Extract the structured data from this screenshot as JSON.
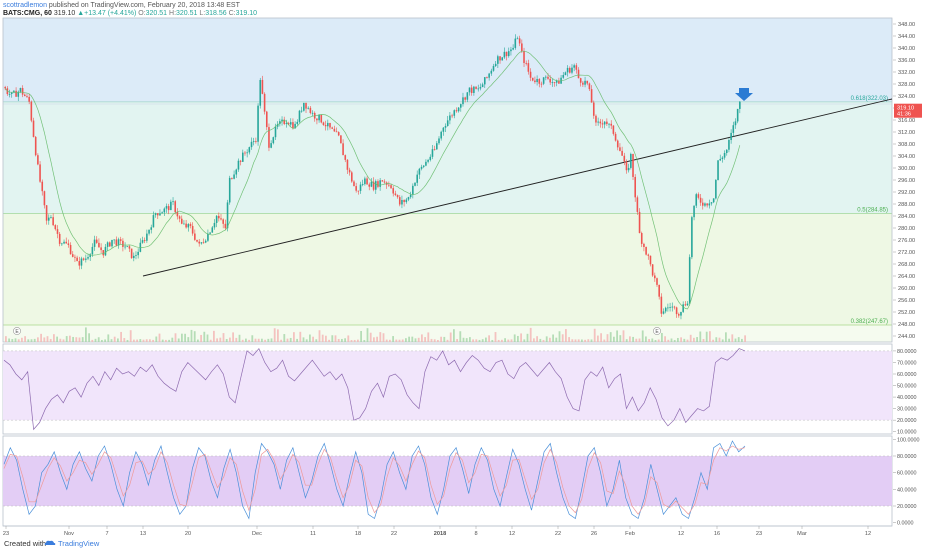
{
  "header": {
    "author": "scottradlemon",
    "published_text": "published on TradingView.com, February 20, 2018 13:48 EST",
    "symbol": "BATS:CMG, 60",
    "last": "319.10",
    "change": "+13.47 (+4.41%)",
    "open_label": "O:",
    "open": "320.51",
    "high_label": "H:",
    "high": "320.51",
    "low_label": "L:",
    "low": "318.56",
    "close_label": "C:",
    "close": "319.10"
  },
  "footer": {
    "created_label": "Created with",
    "brand": "TradingView"
  },
  "colors": {
    "up": "#26a69a",
    "down": "#ef5350",
    "band_top": "#dcebf8",
    "band_mid": "#e2f4f1",
    "band_low": "#eef8e4",
    "rsi_band": "#f1e5fb",
    "stoch_band": "#e3cdf5",
    "ma": "#66bb6a",
    "rsi_line": "#8e6bb0",
    "stoch_k": "#4a90d9",
    "stoch_d": "#ef9a9a",
    "arrow": "#2b7bd3",
    "price_tag": "#ef5350"
  },
  "chart_data": [
    {
      "type": "candlestick",
      "title": "",
      "yticks": [
        244,
        248,
        252,
        256,
        260,
        264,
        268,
        272,
        276,
        280,
        284,
        288,
        292,
        296,
        300,
        304,
        308,
        312,
        316,
        320,
        324,
        328,
        332,
        336,
        340,
        344,
        348
      ],
      "ylim": [
        242,
        350
      ],
      "xticks": [
        "23",
        "Nov",
        "7",
        "13",
        "20",
        "Dec",
        "11",
        "18",
        "22",
        "2018",
        "8",
        "12",
        "22",
        "26",
        "Feb",
        "12",
        "16",
        "23",
        "Mar",
        "12"
      ],
      "fib_levels": [
        {
          "label": "0.618(322.03)",
          "value": 322.03
        },
        {
          "label": "0.5(284.85)",
          "value": 284.85
        },
        {
          "label": "0.382(247.67)",
          "value": 247.67
        }
      ],
      "trendline": {
        "from": {
          "x": "13",
          "y": 264
        },
        "to": {
          "x": "Mar-12+",
          "y": 323
        }
      },
      "last_price": "319.10",
      "timer": "41:36",
      "event_markers": [
        "E",
        "E"
      ],
      "price_path": [
        [
          0,
          327
        ],
        [
          4,
          324
        ],
        [
          8,
          326
        ],
        [
          12,
          322
        ],
        [
          16,
          300
        ],
        [
          20,
          282
        ],
        [
          22,
          284
        ],
        [
          26,
          276
        ],
        [
          30,
          274
        ],
        [
          34,
          268
        ],
        [
          38,
          270
        ],
        [
          42,
          275
        ],
        [
          46,
          272
        ],
        [
          50,
          276
        ],
        [
          56,
          274
        ],
        [
          60,
          270
        ],
        [
          66,
          278
        ],
        [
          70,
          285
        ],
        [
          74,
          286
        ],
        [
          78,
          288
        ],
        [
          82,
          281
        ],
        [
          86,
          280
        ],
        [
          90,
          274
        ],
        [
          94,
          278
        ],
        [
          98,
          284
        ],
        [
          102,
          280
        ],
        [
          104,
          296
        ],
        [
          108,
          302
        ],
        [
          112,
          306
        ],
        [
          116,
          310
        ],
        [
          118,
          330
        ],
        [
          120,
          318
        ],
        [
          122,
          308
        ],
        [
          126,
          314
        ],
        [
          130,
          316
        ],
        [
          134,
          314
        ],
        [
          138,
          322
        ],
        [
          142,
          318
        ],
        [
          146,
          316
        ],
        [
          150,
          313
        ],
        [
          154,
          310
        ],
        [
          158,
          300
        ],
        [
          162,
          292
        ],
        [
          166,
          296
        ],
        [
          170,
          294
        ],
        [
          174,
          296
        ],
        [
          178,
          294
        ],
        [
          182,
          288
        ],
        [
          186,
          290
        ],
        [
          190,
          298
        ],
        [
          194,
          302
        ],
        [
          198,
          306
        ],
        [
          202,
          314
        ],
        [
          206,
          318
        ],
        [
          210,
          322
        ],
        [
          214,
          326
        ],
        [
          218,
          326
        ],
        [
          222,
          330
        ],
        [
          226,
          336
        ],
        [
          230,
          338
        ],
        [
          234,
          340
        ],
        [
          236,
          344
        ],
        [
          238,
          338
        ],
        [
          242,
          330
        ],
        [
          246,
          329
        ],
        [
          250,
          330
        ],
        [
          254,
          328
        ],
        [
          258,
          332
        ],
        [
          262,
          334
        ],
        [
          264,
          330
        ],
        [
          268,
          328
        ],
        [
          270,
          322
        ],
        [
          272,
          314
        ],
        [
          276,
          316
        ],
        [
          280,
          312
        ],
        [
          284,
          304
        ],
        [
          286,
          298
        ],
        [
          288,
          304
        ],
        [
          292,
          278
        ],
        [
          296,
          270
        ],
        [
          300,
          260
        ],
        [
          302,
          252
        ],
        [
          306,
          254
        ],
        [
          310,
          252
        ],
        [
          314,
          256
        ],
        [
          316,
          284
        ],
        [
          318,
          290
        ],
        [
          322,
          288
        ],
        [
          326,
          290
        ],
        [
          328,
          302
        ],
        [
          332,
          306
        ],
        [
          336,
          316
        ],
        [
          338,
          322
        ]
      ]
    },
    {
      "type": "line",
      "title": "",
      "yticks": [
        "80.0000",
        "70.0000",
        "60.0000",
        "50.0000",
        "40.0000",
        "30.0000",
        "20.0000",
        "10.0000"
      ],
      "ylim": [
        8,
        86
      ],
      "band": [
        20,
        80
      ],
      "values": [
        72,
        68,
        60,
        55,
        62,
        12,
        18,
        30,
        38,
        42,
        35,
        45,
        48,
        40,
        52,
        58,
        50,
        62,
        55,
        65,
        60,
        62,
        58,
        66,
        62,
        68,
        58,
        52,
        48,
        45,
        62,
        70,
        65,
        60,
        55,
        62,
        68,
        60,
        40,
        35,
        58,
        80,
        76,
        82,
        70,
        62,
        65,
        72,
        58,
        54,
        60,
        66,
        72,
        65,
        58,
        62,
        55,
        60,
        48,
        20,
        22,
        30,
        45,
        52,
        40,
        58,
        60,
        55,
        42,
        35,
        30,
        62,
        75,
        72,
        80,
        68,
        72,
        62,
        70,
        76,
        72,
        65,
        62,
        70,
        72,
        60,
        56,
        66,
        70,
        64,
        58,
        64,
        70,
        62,
        56,
        40,
        30,
        28,
        55,
        62,
        58,
        66,
        48,
        56,
        60,
        30,
        40,
        28,
        35,
        48,
        38,
        22,
        15,
        20,
        30,
        18,
        24,
        30,
        28,
        32,
        70,
        74,
        72,
        76,
        82,
        80
      ]
    },
    {
      "type": "line",
      "title": "",
      "yticks": [
        "100.0000",
        "80.0000",
        "60.0000",
        "40.0000",
        "20.0000",
        "0.0000"
      ],
      "ylim": [
        -4,
        104
      ],
      "band": [
        20,
        80
      ],
      "series": [
        {
          "values": [
            70,
            90,
            75,
            40,
            10,
            20,
            60,
            70,
            85,
            60,
            40,
            70,
            85,
            65,
            50,
            80,
            92,
            70,
            40,
            20,
            60,
            85,
            70,
            45,
            75,
            92,
            60,
            30,
            10,
            20,
            65,
            90,
            80,
            50,
            30,
            65,
            88,
            60,
            20,
            5,
            60,
            95,
            85,
            70,
            40,
            75,
            90,
            60,
            30,
            50,
            80,
            95,
            70,
            40,
            20,
            55,
            85,
            60,
            10,
            5,
            30,
            70,
            85,
            60,
            40,
            80,
            92,
            70,
            30,
            10,
            40,
            80,
            90,
            65,
            35,
            70,
            90,
            75,
            40,
            20,
            55,
            88,
            70,
            40,
            15,
            50,
            85,
            95,
            60,
            30,
            10,
            5,
            40,
            80,
            90,
            60,
            20,
            40,
            75,
            30,
            10,
            5,
            30,
            70,
            40,
            10,
            20,
            30,
            10,
            5,
            30,
            60,
            40,
            90,
            95,
            80,
            98,
            85,
            92
          ]
        },
        {
          "values": [
            65,
            82,
            80,
            55,
            25,
            25,
            45,
            65,
            78,
            68,
            50,
            60,
            75,
            72,
            58,
            70,
            85,
            78,
            55,
            32,
            45,
            72,
            74,
            58,
            65,
            85,
            72,
            45,
            22,
            20,
            48,
            78,
            82,
            62,
            42,
            55,
            78,
            70,
            38,
            15,
            40,
            82,
            88,
            75,
            52,
            65,
            82,
            72,
            45,
            45,
            70,
            88,
            78,
            52,
            30,
            45,
            75,
            68,
            30,
            12,
            22,
            55,
            78,
            68,
            50,
            70,
            86,
            78,
            45,
            22,
            32,
            65,
            84,
            75,
            48,
            60,
            82,
            80,
            55,
            32,
            45,
            75,
            76,
            52,
            28,
            40,
            72,
            88,
            72,
            42,
            20,
            12,
            28,
            65,
            84,
            72,
            38,
            35,
            62,
            45,
            20,
            10,
            22,
            55,
            48,
            22,
            18,
            26,
            18,
            10,
            22,
            48,
            46,
            75,
            90,
            86,
            92,
            88,
            90
          ]
        }
      ]
    }
  ]
}
